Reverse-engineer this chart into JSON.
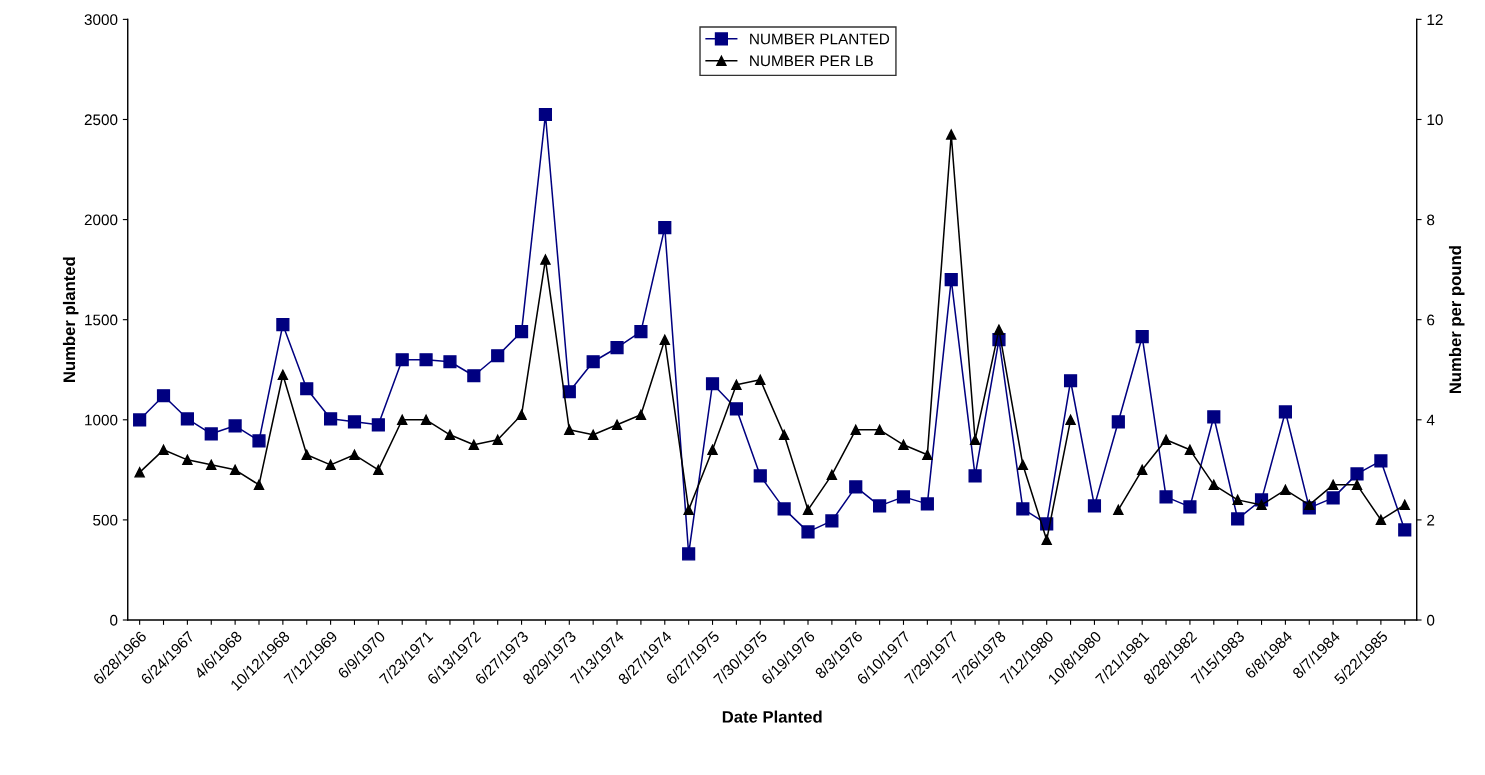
{
  "chart_data": {
    "type": "line",
    "xlabel": "Date Planted",
    "ylabel": "Number planted",
    "y2label": "Number per pound",
    "categories": [
      "6/28/1966",
      null,
      "6/24/1967",
      null,
      "4/6/1968",
      null,
      "10/12/1968",
      null,
      "7/12/1969",
      null,
      "6/9/1970",
      null,
      "7/23/1971",
      null,
      "6/13/1972",
      null,
      "6/27/1973",
      null,
      "8/29/1973",
      null,
      "7/13/1974",
      null,
      "8/27/1974",
      null,
      "6/27/1975",
      null,
      "7/30/1975",
      null,
      "6/19/1976",
      null,
      "8/3/1976",
      null,
      "6/10/1977",
      null,
      "7/29/1977",
      null,
      "7/26/1978",
      null,
      "7/12/1980",
      null,
      "10/8/1980",
      null,
      "7/21/1981",
      null,
      "8/28/1982",
      null,
      "7/15/1983",
      null,
      "6/8/1984",
      null,
      "8/7/1984",
      null,
      "5/22/1985",
      null
    ],
    "series": [
      {
        "name": "NUMBER PLANTED",
        "color": "#000080",
        "marker": "square",
        "values": [
          1000,
          1120,
          1005,
          930,
          970,
          895,
          1475,
          1155,
          1005,
          990,
          975,
          1300,
          1300,
          1290,
          1220,
          1320,
          1440,
          2525,
          1140,
          1290,
          1360,
          1440,
          1960,
          330,
          1180,
          1055,
          720,
          555,
          440,
          495,
          665,
          570,
          615,
          580,
          1700,
          720,
          1400,
          555,
          480,
          1195,
          570,
          990,
          1415,
          615,
          565,
          1015,
          505,
          600,
          1040,
          560,
          610,
          730,
          795,
          450
        ]
      },
      {
        "name": "NUMBER PER LB",
        "color": "#000000",
        "marker": "triangle",
        "axis": "y2",
        "values": [
          2.95,
          3.4,
          3.2,
          3.1,
          3.0,
          2.7,
          4.9,
          3.3,
          3.1,
          3.3,
          3.0,
          4.0,
          4.0,
          3.7,
          3.5,
          3.6,
          4.1,
          7.2,
          3.8,
          3.7,
          3.9,
          4.1,
          5.6,
          2.2,
          3.4,
          4.7,
          4.8,
          3.7,
          2.2,
          2.9,
          3.8,
          3.8,
          3.5,
          3.3,
          9.7,
          3.6,
          5.8,
          3.1,
          1.6,
          4.0,
          null,
          2.2,
          3.0,
          3.6,
          3.4,
          2.7,
          2.4,
          2.3,
          2.6,
          2.3,
          2.7,
          2.7,
          2.0,
          2.3
        ]
      }
    ],
    "ylim": [
      0,
      3000
    ],
    "yticks": [
      0,
      500,
      1000,
      1500,
      2000,
      2500,
      3000
    ],
    "y2lim": [
      0,
      12
    ],
    "y2ticks": [
      0,
      2,
      4,
      6,
      8,
      10,
      12
    ],
    "legend": "top",
    "grid": false
  }
}
